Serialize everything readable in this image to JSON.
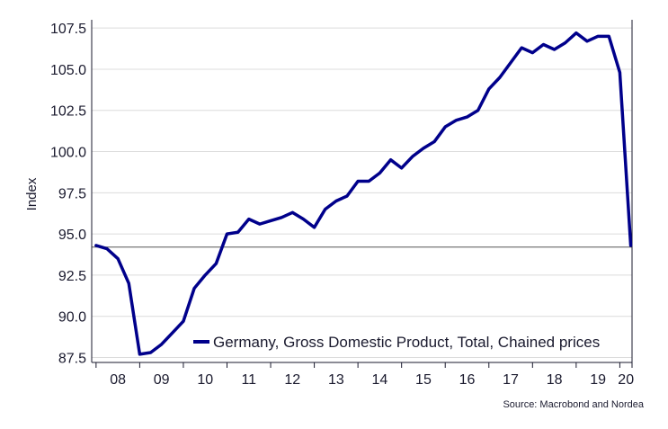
{
  "chart_data": {
    "type": "line",
    "title": "",
    "xlabel": "",
    "ylabel": "Index",
    "ylim": [
      87.2,
      108.0
    ],
    "y_ticks": [
      "107.5",
      "105.0",
      "102.5",
      "100.0",
      "97.5",
      "95.0",
      "92.5",
      "90.0",
      "87.5"
    ],
    "x_year_labels": [
      "08",
      "09",
      "10",
      "11",
      "12",
      "13",
      "14",
      "15",
      "16",
      "17",
      "18",
      "19",
      "20"
    ],
    "grid": true,
    "legend_position": "bottom-right",
    "series": [
      {
        "name": "Germany, Gross Domestic Product, Total, Chained prices",
        "color": "#00008b",
        "x": [
          2008.0,
          2008.25,
          2008.5,
          2008.75,
          2009.0,
          2009.25,
          2009.5,
          2009.75,
          2010.0,
          2010.25,
          2010.5,
          2010.75,
          2011.0,
          2011.25,
          2011.5,
          2011.75,
          2012.0,
          2012.25,
          2012.5,
          2012.75,
          2013.0,
          2013.25,
          2013.5,
          2013.75,
          2014.0,
          2014.25,
          2014.5,
          2014.75,
          2015.0,
          2015.25,
          2015.5,
          2015.75,
          2016.0,
          2016.25,
          2016.5,
          2016.75,
          2017.0,
          2017.25,
          2017.5,
          2017.75,
          2018.0,
          2018.25,
          2018.5,
          2018.75,
          2019.0,
          2019.25,
          2019.5,
          2019.75,
          2020.0,
          2020.25
        ],
        "values": [
          94.3,
          94.1,
          93.5,
          92.0,
          87.7,
          87.8,
          88.3,
          89.0,
          89.7,
          91.7,
          92.5,
          93.2,
          95.0,
          95.1,
          95.9,
          95.6,
          95.8,
          96.0,
          96.3,
          95.9,
          95.4,
          96.5,
          97.0,
          97.3,
          98.2,
          98.2,
          98.7,
          99.5,
          99.0,
          99.7,
          100.2,
          100.6,
          101.5,
          101.9,
          102.1,
          102.5,
          103.8,
          104.5,
          105.4,
          106.3,
          106.0,
          106.5,
          106.2,
          106.6,
          107.2,
          106.7,
          107.0,
          107.0,
          104.8,
          94.3
        ]
      }
    ],
    "reference_line": 94.2
  },
  "source": "Source: Macrobond and Nordea"
}
